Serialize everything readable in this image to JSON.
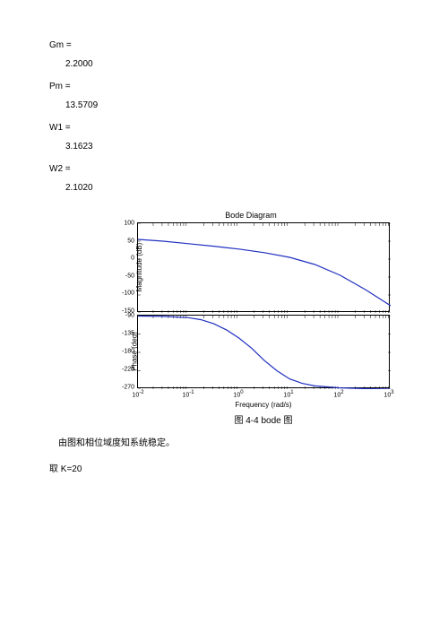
{
  "vars": {
    "gm_label": "Gm =",
    "gm_value": "2.2000",
    "pm_label": "Pm =",
    "pm_value": "13.5709",
    "w1_label": "W1 =",
    "w1_value": "3.1623",
    "w2_label": "W2 =",
    "w2_value": "2.1020"
  },
  "chart": {
    "title": "Bode Diagram",
    "mag": {
      "ylabel": "Magnitude (dB)",
      "ylim": [
        -150,
        100
      ],
      "yticks": [
        100,
        50,
        0,
        -50,
        -100,
        -150
      ],
      "line_color": "#2030c0",
      "points": [
        [
          0,
          55
        ],
        [
          0.1,
          50
        ],
        [
          0.2,
          43
        ],
        [
          0.3,
          36
        ],
        [
          0.4,
          28
        ],
        [
          0.5,
          18
        ],
        [
          0.6,
          5
        ],
        [
          0.7,
          -15
        ],
        [
          0.8,
          -45
        ],
        [
          0.9,
          -85
        ],
        [
          1.0,
          -130
        ]
      ]
    },
    "phase": {
      "ylabel": "Phase (deg)",
      "ylim": [
        -270,
        -90
      ],
      "yticks": [
        -90,
        -135,
        -180,
        -225,
        -270
      ],
      "line_color": "#2030c0",
      "points": [
        [
          0,
          -91
        ],
        [
          0.1,
          -92
        ],
        [
          0.2,
          -95
        ],
        [
          0.25,
          -100
        ],
        [
          0.3,
          -110
        ],
        [
          0.35,
          -125
        ],
        [
          0.4,
          -145
        ],
        [
          0.45,
          -170
        ],
        [
          0.5,
          -200
        ],
        [
          0.55,
          -225
        ],
        [
          0.6,
          -245
        ],
        [
          0.65,
          -256
        ],
        [
          0.7,
          -262
        ],
        [
          0.8,
          -267
        ],
        [
          0.9,
          -269
        ],
        [
          1.0,
          -270
        ]
      ]
    },
    "xlabel": "Frequency  (rad/s)",
    "xticks_exp": [
      -2,
      -1,
      0,
      1,
      2,
      3
    ],
    "xticks_pos": [
      0,
      0.2,
      0.4,
      0.6,
      0.8,
      1.0
    ],
    "caption": "图 4-4    bode 图"
  },
  "text": {
    "line1": "由图和相位域度知系统稳定。",
    "line2": "取 K=20"
  },
  "colors": {
    "axis": "#000000",
    "bg": "#ffffff"
  }
}
